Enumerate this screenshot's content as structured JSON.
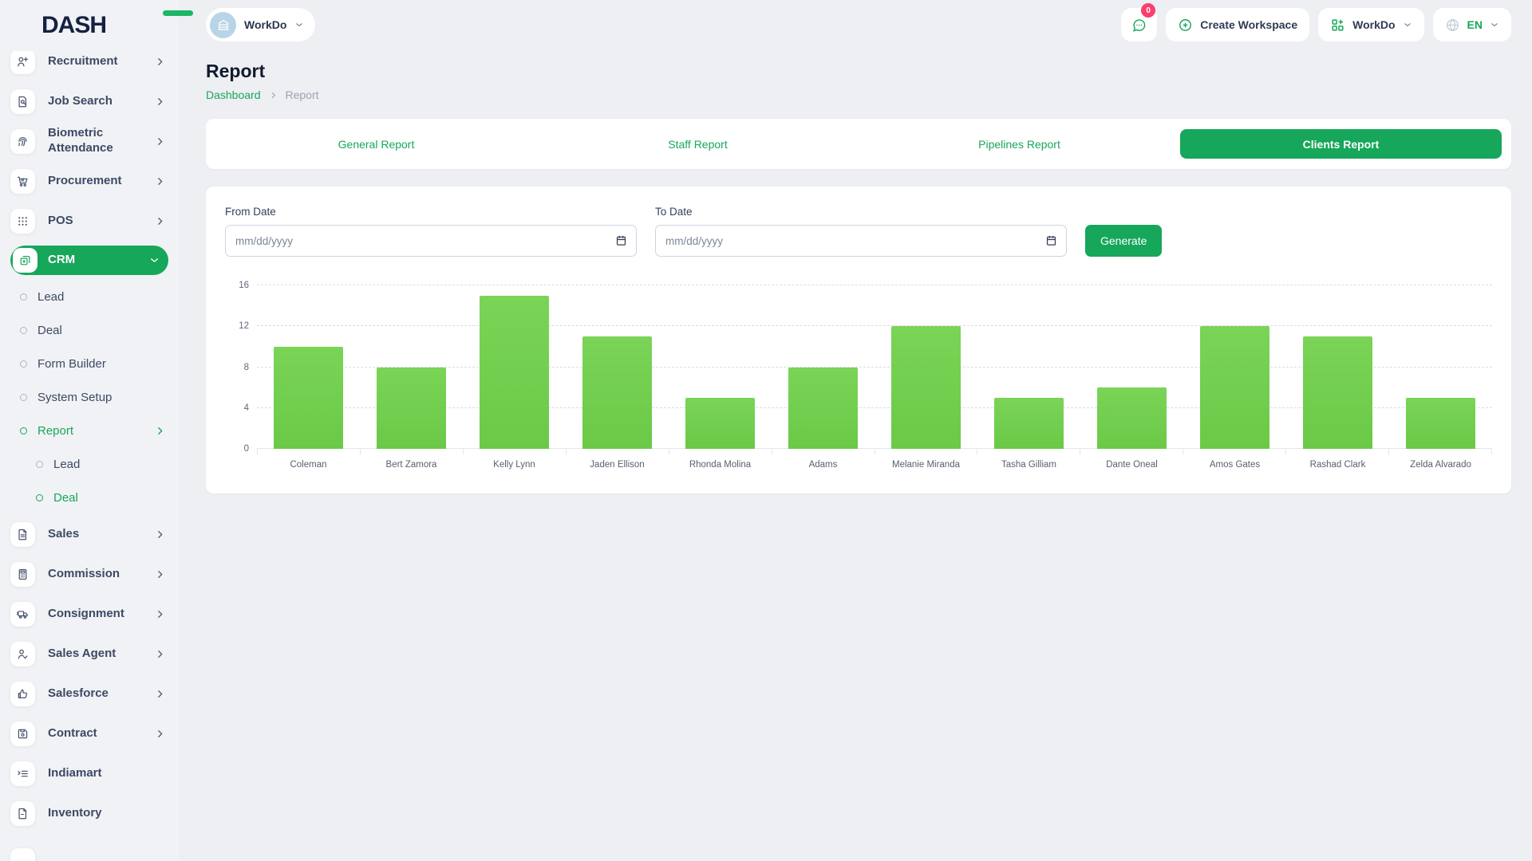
{
  "brand": {
    "logo_text": "DASH",
    "accent_color": "#16a75a"
  },
  "header": {
    "workspace_switcher": {
      "label": "WorkDo"
    },
    "notifications": {
      "badge_count": "0"
    },
    "create_workspace_label": "Create Workspace",
    "app_menu_label": "WorkDo",
    "language": "EN"
  },
  "sidebar": {
    "items": [
      {
        "label": "Recruitment",
        "icon": "person-plus-icon",
        "chevron": "right"
      },
      {
        "label": "Job Search",
        "icon": "document-search-icon",
        "chevron": "right"
      },
      {
        "label": "Biometric Attendance",
        "icon": "fingerprint-icon",
        "chevron": "right"
      },
      {
        "label": "Procurement",
        "icon": "cart-icon",
        "chevron": "right"
      },
      {
        "label": "POS",
        "icon": "grid-dots-icon",
        "chevron": "right"
      },
      {
        "label": "CRM",
        "icon": "stack-icon",
        "chevron": "down",
        "active": true,
        "children": [
          {
            "label": "Lead"
          },
          {
            "label": "Deal"
          },
          {
            "label": "Form Builder"
          },
          {
            "label": "System Setup"
          },
          {
            "label": "Report",
            "active": true,
            "chevron": "right",
            "children": [
              {
                "label": "Lead"
              },
              {
                "label": "Deal",
                "active": true
              }
            ]
          }
        ]
      },
      {
        "label": "Sales",
        "icon": "file-text-icon",
        "chevron": "right"
      },
      {
        "label": "Commission",
        "icon": "calculator-icon",
        "chevron": "right"
      },
      {
        "label": "Consignment",
        "icon": "truck-icon",
        "chevron": "right"
      },
      {
        "label": "Sales Agent",
        "icon": "person-check-icon",
        "chevron": "right"
      },
      {
        "label": "Salesforce",
        "icon": "thumbs-up-icon",
        "chevron": "right"
      },
      {
        "label": "Contract",
        "icon": "save-icon",
        "chevron": "right"
      },
      {
        "label": "Indiamart",
        "icon": "list-indent-icon"
      },
      {
        "label": "Inventory",
        "icon": "file-icon"
      }
    ]
  },
  "page": {
    "title": "Report",
    "breadcrumb": {
      "home": "Dashboard",
      "current": "Report"
    }
  },
  "tabs": [
    {
      "label": "General Report"
    },
    {
      "label": "Staff Report"
    },
    {
      "label": "Pipelines Report"
    },
    {
      "label": "Clients Report",
      "active": true
    }
  ],
  "filter": {
    "from_label": "From Date",
    "to_label": "To Date",
    "date_placeholder": "mm/dd/yyyy",
    "generate_label": "Generate"
  },
  "chart_data": {
    "type": "bar",
    "title": "Clients Report",
    "categories": [
      "Coleman",
      "Bert Zamora",
      "Kelly Lynn",
      "Jaden Ellison",
      "Rhonda Molina",
      "Adams",
      "Melanie Miranda",
      "Tasha Gilliam",
      "Dante Oneal",
      "Amos Gates",
      "Rashad Clark",
      "Zelda Alvarado"
    ],
    "values": [
      10,
      8,
      15,
      11,
      5,
      8,
      12,
      5,
      6,
      12,
      11,
      5
    ],
    "xlabel": "",
    "ylabel": "",
    "ylim": [
      0,
      16
    ],
    "yticks": [
      0,
      4,
      8,
      12,
      16
    ],
    "grid": "horizontal-dashed",
    "legend": "none",
    "bar_color": "#72ce50"
  }
}
